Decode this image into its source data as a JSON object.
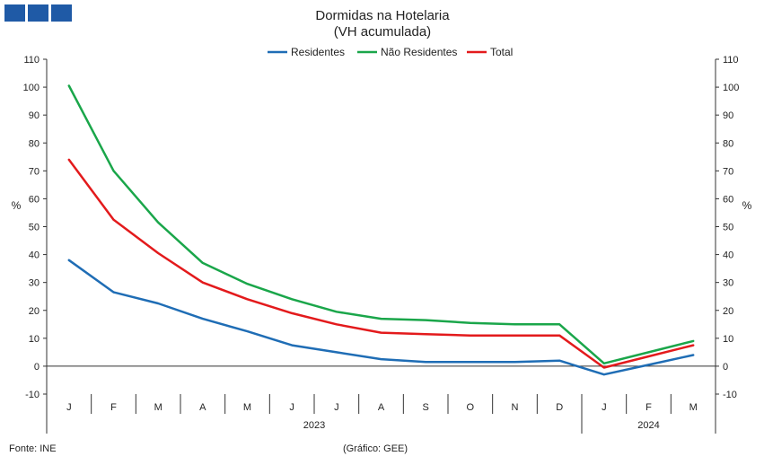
{
  "logo": {
    "icon": "ine-logo-blocks"
  },
  "footer": {
    "source": "Fonte: INE",
    "credit": "(Gráfico: GEE)"
  },
  "chart_data": {
    "type": "line",
    "title": "Dormidas na Hotelaria",
    "subtitle": "(VH acumulada)",
    "ylabel": "%",
    "ylabel_right": "%",
    "ylim": [
      -10,
      110
    ],
    "yticks": [
      -10,
      0,
      10,
      20,
      30,
      40,
      50,
      60,
      70,
      80,
      90,
      100,
      110
    ],
    "grid": false,
    "legend_position": "top-center",
    "categories": [
      "J",
      "F",
      "M",
      "A",
      "M",
      "J",
      "J",
      "A",
      "S",
      "O",
      "N",
      "D",
      "J",
      "F",
      "M"
    ],
    "year_groups": [
      {
        "label": "2023",
        "start": 0,
        "end": 11
      },
      {
        "label": "2024",
        "start": 12,
        "end": 14
      }
    ],
    "series": [
      {
        "name": "Residentes",
        "color": "#1f6db5",
        "values": [
          38,
          26.5,
          22.5,
          17,
          12.5,
          7.5,
          5,
          2.5,
          1.5,
          1.5,
          1.5,
          2,
          -3,
          0.5,
          4
        ]
      },
      {
        "name": "Não Residentes",
        "color": "#1aa64a",
        "values": [
          100.5,
          70,
          51.5,
          37,
          29.5,
          24,
          19.5,
          17,
          16.5,
          15.5,
          15,
          15,
          1,
          5,
          9
        ]
      },
      {
        "name": "Total",
        "color": "#e31a1c",
        "values": [
          74,
          52.5,
          40.5,
          30,
          24,
          19,
          15,
          12,
          11.5,
          11,
          11,
          11,
          -0.5,
          3.5,
          7.5
        ]
      }
    ]
  }
}
